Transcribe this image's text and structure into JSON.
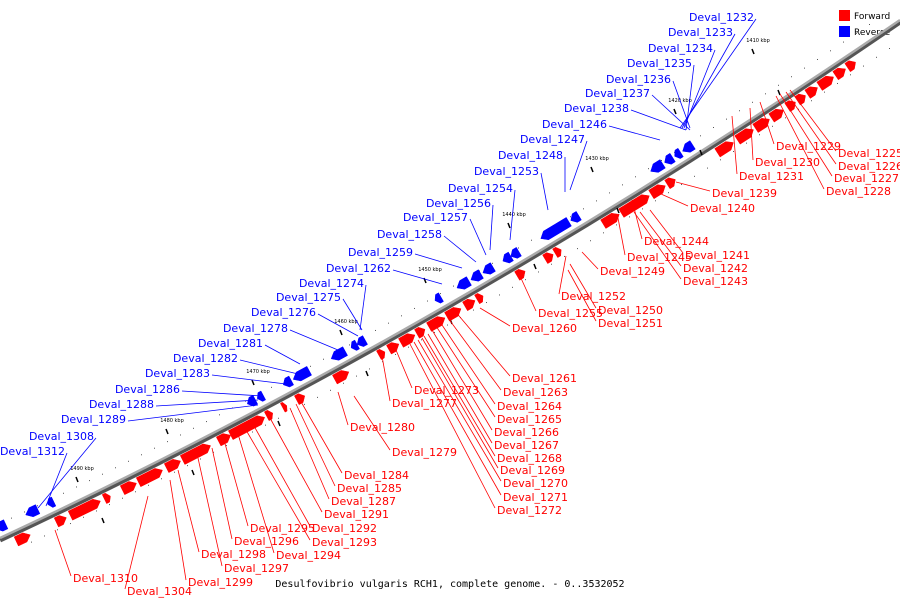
{
  "legend": {
    "forward": {
      "label": "Forward",
      "color": "#ff0000"
    },
    "reverse": {
      "label": "Reverse",
      "color": "#0000ff"
    }
  },
  "caption": "Desulfovibrio vulgaris RCH1, complete genome. - 0..3532052",
  "ticks": [
    "1410 kbp",
    "1420 kbp",
    "1430 kbp",
    "1440 kbp",
    "1450 kbp",
    "1460 kbp",
    "1470 kbp",
    "1480 kbp",
    "1490 kbp"
  ],
  "reverse_labels": [
    "Deval_1232",
    "Deval_1233",
    "Deval_1234",
    "Deval_1235",
    "Deval_1236",
    "Deval_1237",
    "Deval_1238",
    "Deval_1246",
    "Deval_1247",
    "Deval_1248",
    "Deval_1253",
    "Deval_1254",
    "Deval_1256",
    "Deval_1257",
    "Deval_1258",
    "Deval_1259",
    "Deval_1262",
    "Deval_1274",
    "Deval_1275",
    "Deval_1276",
    "Deval_1278",
    "Deval_1281",
    "Deval_1282",
    "Deval_1283",
    "Deval_1286",
    "Deval_1288",
    "Deval_1289",
    "Deval_1308",
    "Deval_1312"
  ],
  "forward_labels": [
    "Deval_1225",
    "Deval_1226",
    "Deval_1227",
    "Deval_1228",
    "Deval_1229",
    "Deval_1230",
    "Deval_1231",
    "Deval_1239",
    "Deval_1240",
    "Deval_1244",
    "Deval_1241",
    "Deval_1242",
    "Deval_1243",
    "Deval_1245",
    "Deval_1249",
    "Deval_1252",
    "Deval_1250",
    "Deval_1251",
    "Deval_1255",
    "Deval_1260",
    "Deval_1261",
    "Deval_1263",
    "Deval_1264",
    "Deval_1265",
    "Deval_1266",
    "Deval_1267",
    "Deval_1268",
    "Deval_1269",
    "Deval_1270",
    "Deval_1271",
    "Deval_1272",
    "Deval_1273",
    "Deval_1277",
    "Deval_1280",
    "Deval_1279",
    "Deval_1284",
    "Deval_1285",
    "Deval_1287",
    "Deval_1291",
    "Deval_1292",
    "Deval_1293",
    "Deval_1294",
    "Deval_1295",
    "Deval_1296",
    "Deval_1297",
    "Deval_1298",
    "Deval_1299",
    "Deval_1304",
    "Deval_1310"
  ]
}
